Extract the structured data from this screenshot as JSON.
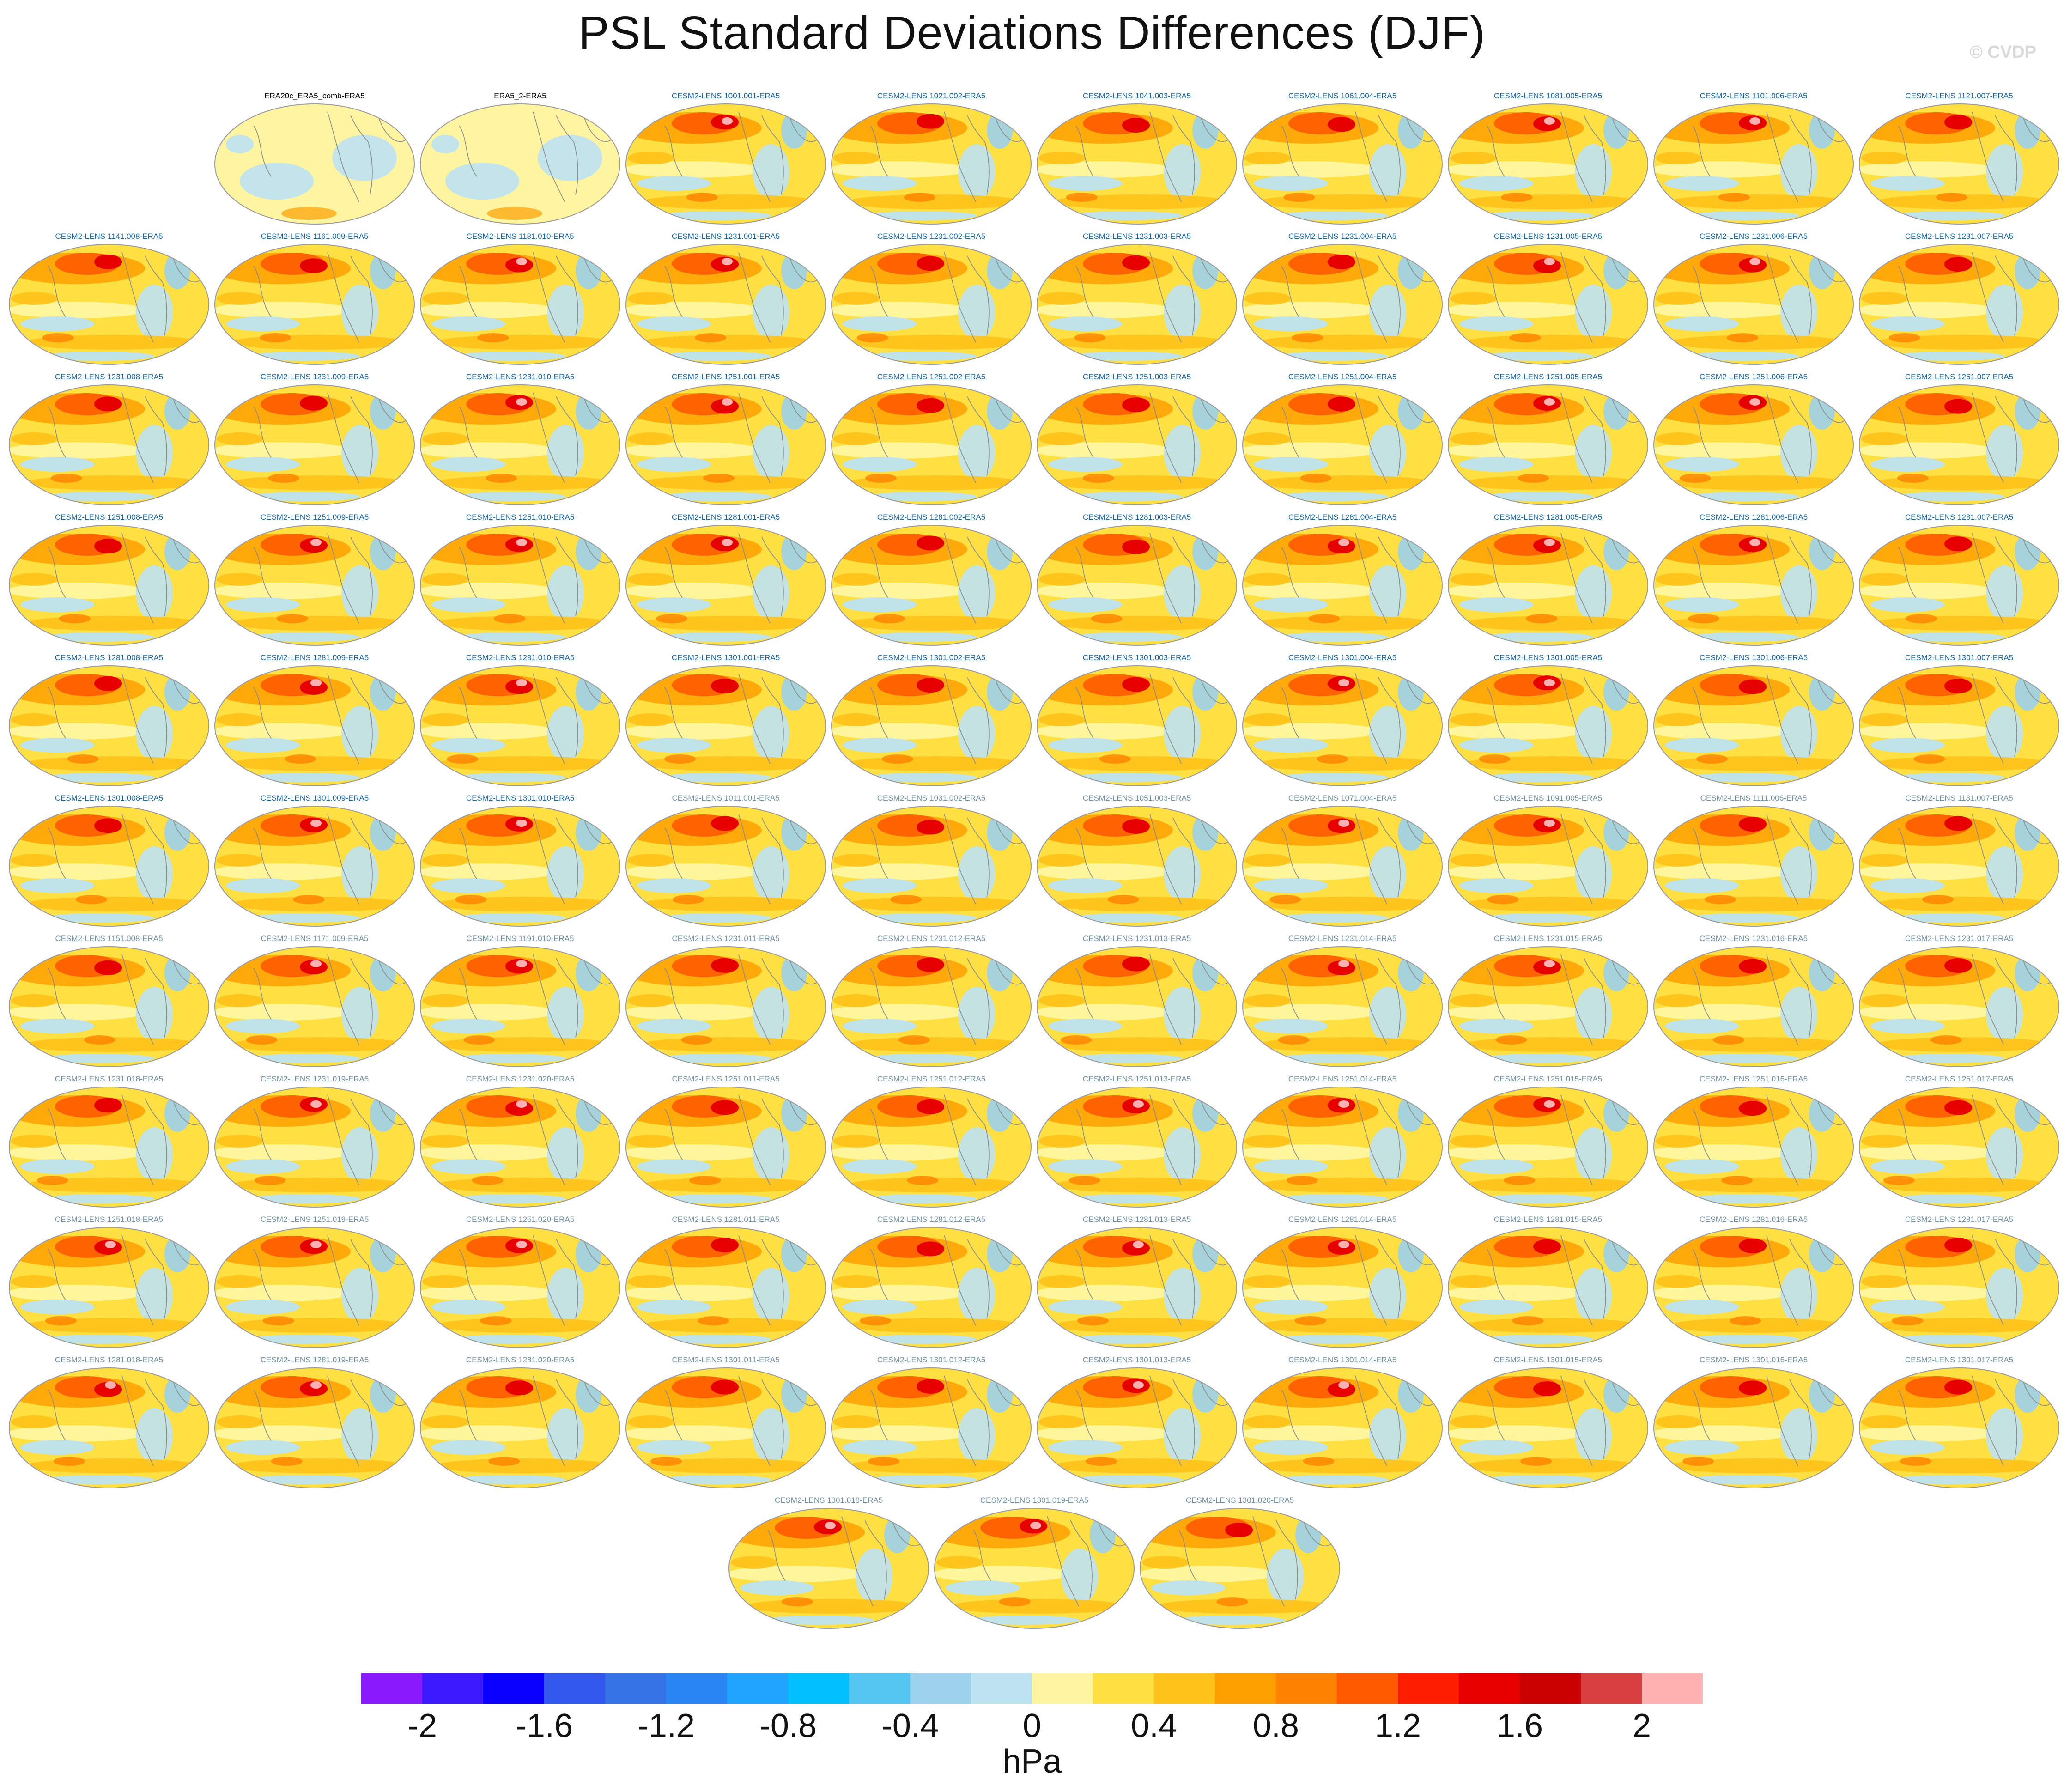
{
  "title": "PSL Standard Deviations Differences (DJF)",
  "watermark": "© CVDP",
  "colorbar": {
    "unit": "hPa",
    "ticks": [
      "-2",
      "-1.6",
      "-1.2",
      "-0.8",
      "-0.4",
      "0",
      "0.4",
      "0.8",
      "1.2",
      "1.6",
      "2"
    ],
    "colors": [
      "#8a1aff",
      "#3c19ff",
      "#0a00ff",
      "#3257ec",
      "#3574e6",
      "#2a86f5",
      "#21a4ff",
      "#00c0ff",
      "#55c6f2",
      "#9cd2ec",
      "#bde2f2",
      "#fff5a0",
      "#ffe043",
      "#ffc21a",
      "#ffa000",
      "#ff8200",
      "#ff5a00",
      "#ff1e00",
      "#e60000",
      "#c80000",
      "#d84040",
      "#ffb0b0"
    ]
  },
  "panels": [
    "ERA20c_ERA5_comb-ERA5",
    "ERA5_2-ERA5",
    "CESM2-LENS 1001.001-ERA5",
    "CESM2-LENS 1021.002-ERA5",
    "CESM2-LENS 1041.003-ERA5",
    "CESM2-LENS 1061.004-ERA5",
    "CESM2-LENS 1081.005-ERA5",
    "CESM2-LENS 1101.006-ERA5",
    "CESM2-LENS 1121.007-ERA5",
    "CESM2-LENS 1141.008-ERA5",
    "CESM2-LENS 1161.009-ERA5",
    "CESM2-LENS 1181.010-ERA5",
    "CESM2-LENS 1231.001-ERA5",
    "CESM2-LENS 1231.002-ERA5",
    "CESM2-LENS 1231.003-ERA5",
    "CESM2-LENS 1231.004-ERA5",
    "CESM2-LENS 1231.005-ERA5",
    "CESM2-LENS 1231.006-ERA5",
    "CESM2-LENS 1231.007-ERA5",
    "CESM2-LENS 1231.008-ERA5",
    "CESM2-LENS 1231.009-ERA5",
    "CESM2-LENS 1231.010-ERA5",
    "CESM2-LENS 1251.001-ERA5",
    "CESM2-LENS 1251.002-ERA5",
    "CESM2-LENS 1251.003-ERA5",
    "CESM2-LENS 1251.004-ERA5",
    "CESM2-LENS 1251.005-ERA5",
    "CESM2-LENS 1251.006-ERA5",
    "CESM2-LENS 1251.007-ERA5",
    "CESM2-LENS 1251.008-ERA5",
    "CESM2-LENS 1251.009-ERA5",
    "CESM2-LENS 1251.010-ERA5",
    "CESM2-LENS 1281.001-ERA5",
    "CESM2-LENS 1281.002-ERA5",
    "CESM2-LENS 1281.003-ERA5",
    "CESM2-LENS 1281.004-ERA5",
    "CESM2-LENS 1281.005-ERA5",
    "CESM2-LENS 1281.006-ERA5",
    "CESM2-LENS 1281.007-ERA5",
    "CESM2-LENS 1281.008-ERA5",
    "CESM2-LENS 1281.009-ERA5",
    "CESM2-LENS 1281.010-ERA5",
    "CESM2-LENS 1301.001-ERA5",
    "CESM2-LENS 1301.002-ERA5",
    "CESM2-LENS 1301.003-ERA5",
    "CESM2-LENS 1301.004-ERA5",
    "CESM2-LENS 1301.005-ERA5",
    "CESM2-LENS 1301.006-ERA5",
    "CESM2-LENS 1301.007-ERA5",
    "CESM2-LENS 1301.008-ERA5",
    "CESM2-LENS 1301.009-ERA5",
    "CESM2-LENS 1301.010-ERA5",
    "CESM2-LENS 1011.001-ERA5",
    "CESM2-LENS 1031.002-ERA5",
    "CESM2-LENS 1051.003-ERA5",
    "CESM2-LENS 1071.004-ERA5",
    "CESM2-LENS 1091.005-ERA5",
    "CESM2-LENS 1111.006-ERA5",
    "CESM2-LENS 1131.007-ERA5",
    "CESM2-LENS 1151.008-ERA5",
    "CESM2-LENS 1171.009-ERA5",
    "CESM2-LENS 1191.010-ERA5",
    "CESM2-LENS 1231.011-ERA5",
    "CESM2-LENS 1231.012-ERA5",
    "CESM2-LENS 1231.013-ERA5",
    "CESM2-LENS 1231.014-ERA5",
    "CESM2-LENS 1231.015-ERA5",
    "CESM2-LENS 1231.016-ERA5",
    "CESM2-LENS 1231.017-ERA5",
    "CESM2-LENS 1231.018-ERA5",
    "CESM2-LENS 1231.019-ERA5",
    "CESM2-LENS 1231.020-ERA5",
    "CESM2-LENS 1251.011-ERA5",
    "CESM2-LENS 1251.012-ERA5",
    "CESM2-LENS 1251.013-ERA5",
    "CESM2-LENS 1251.014-ERA5",
    "CESM2-LENS 1251.015-ERA5",
    "CESM2-LENS 1251.016-ERA5",
    "CESM2-LENS 1251.017-ERA5",
    "CESM2-LENS 1251.018-ERA5",
    "CESM2-LENS 1251.019-ERA5",
    "CESM2-LENS 1251.020-ERA5",
    "CESM2-LENS 1281.011-ERA5",
    "CESM2-LENS 1281.012-ERA5",
    "CESM2-LENS 1281.013-ERA5",
    "CESM2-LENS 1281.014-ERA5",
    "CESM2-LENS 1281.015-ERA5",
    "CESM2-LENS 1281.016-ERA5",
    "CESM2-LENS 1281.017-ERA5",
    "CESM2-LENS 1281.018-ERA5",
    "CESM2-LENS 1281.019-ERA5",
    "CESM2-LENS 1281.020-ERA5",
    "CESM2-LENS 1301.011-ERA5",
    "CESM2-LENS 1301.012-ERA5",
    "CESM2-LENS 1301.013-ERA5",
    "CESM2-LENS 1301.014-ERA5",
    "CESM2-LENS 1301.015-ERA5",
    "CESM2-LENS 1301.016-ERA5",
    "CESM2-LENS 1301.017-ERA5",
    "CESM2-LENS 1301.018-ERA5",
    "CESM2-LENS 1301.019-ERA5",
    "CESM2-LENS 1301.020-ERA5"
  ]
}
